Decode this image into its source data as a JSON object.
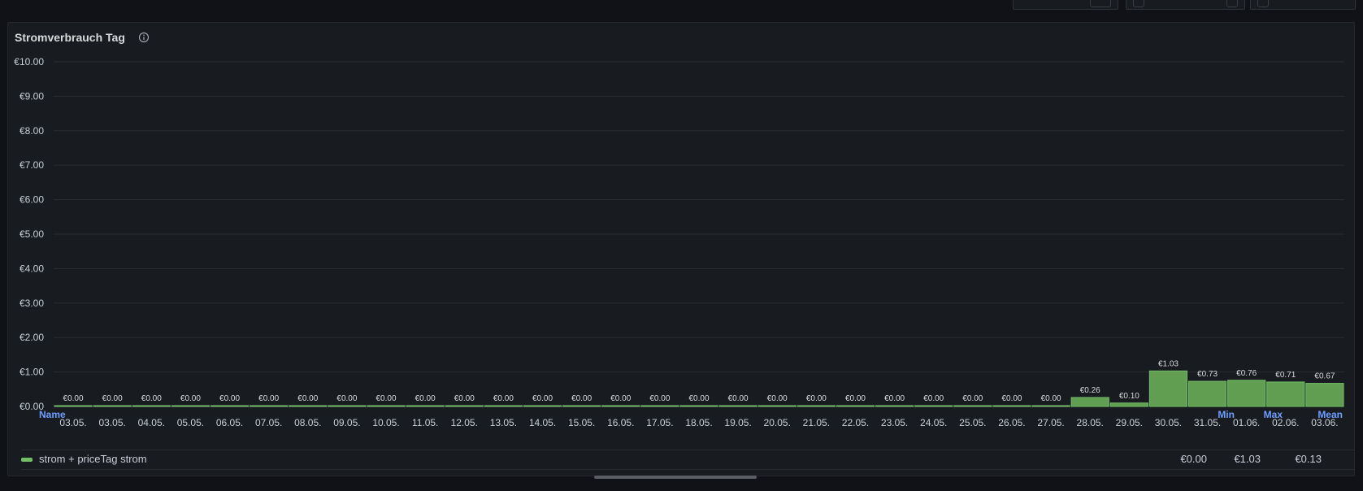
{
  "panel": {
    "title": "Stromverbrauch Tag",
    "info_icon": "info-circle-icon"
  },
  "chart_data": {
    "type": "bar",
    "ylim": [
      0,
      10
    ],
    "yticks": [
      "€0.00",
      "€1.00",
      "€2.00",
      "€3.00",
      "€4.00",
      "€5.00",
      "€6.00",
      "€7.00",
      "€8.00",
      "€9.00",
      "€10.00"
    ],
    "categories": [
      "03.05.",
      "03.05.",
      "04.05.",
      "05.05.",
      "06.05.",
      "07.05.",
      "08.05.",
      "09.05.",
      "10.05.",
      "11.05.",
      "12.05.",
      "13.05.",
      "14.05.",
      "15.05.",
      "16.05.",
      "17.05.",
      "18.05.",
      "19.05.",
      "20.05.",
      "21.05.",
      "22.05.",
      "23.05.",
      "24.05.",
      "25.05.",
      "26.05.",
      "27.05.",
      "28.05.",
      "29.05.",
      "30.05.",
      "31.05.",
      "01.06.",
      "02.06.",
      "03.06."
    ],
    "series": [
      {
        "name": "strom + priceTag strom",
        "color": "#629e51",
        "values": [
          0,
          0,
          0,
          0,
          0,
          0,
          0,
          0,
          0,
          0,
          0,
          0,
          0,
          0,
          0,
          0,
          0,
          0,
          0,
          0,
          0,
          0,
          0,
          0,
          0,
          0,
          0.26,
          0.1,
          1.03,
          0.73,
          0.76,
          0.71,
          0.67
        ],
        "labels": [
          "€0.00",
          "€0.00",
          "€0.00",
          "€0.00",
          "€0.00",
          "€0.00",
          "€0.00",
          "€0.00",
          "€0.00",
          "€0.00",
          "€0.00",
          "€0.00",
          "€0.00",
          "€0.00",
          "€0.00",
          "€0.00",
          "€0.00",
          "€0.00",
          "€0.00",
          "€0.00",
          "€0.00",
          "€0.00",
          "€0.00",
          "€0.00",
          "€0.00",
          "€0.00",
          "€0.26",
          "€0.10",
          "€1.03",
          "€0.73",
          "€0.76",
          "€0.71",
          "€0.67"
        ]
      }
    ],
    "grid": true,
    "legend": "bottom"
  },
  "legend": {
    "headers": {
      "name": "Name",
      "min": "Min",
      "max": "Max",
      "mean": "Mean"
    },
    "rows": [
      {
        "name": "strom + priceTag strom",
        "min": "€0.00",
        "max": "€1.03",
        "mean": "€0.13",
        "color": "#73bf69"
      }
    ]
  }
}
